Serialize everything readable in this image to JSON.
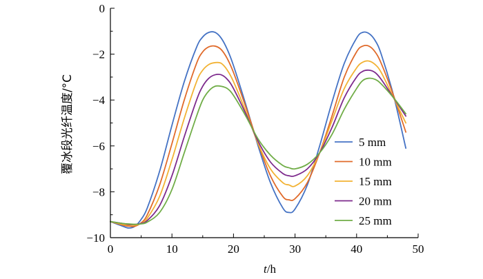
{
  "chart_data": {
    "type": "line",
    "xlabel_var": "t",
    "xlabel_unit": "/h",
    "ylabel": "覆冰段光纤温度/°C",
    "xlim": [
      0,
      50
    ],
    "ylim": [
      -10,
      0
    ],
    "xticks": [
      "0",
      "10",
      "20",
      "30",
      "40",
      "50"
    ],
    "yticks": [
      "0",
      "−2",
      "−4",
      "−6",
      "−8",
      "−10"
    ],
    "grid": false,
    "legend_position": "right",
    "x": [
      0,
      2,
      3,
      4,
      5,
      6,
      8,
      10,
      12,
      14,
      15,
      16,
      17,
      18,
      19,
      20,
      22,
      24,
      26,
      28,
      29,
      30,
      32,
      34,
      36,
      38,
      40,
      41,
      42,
      43,
      44,
      46,
      48
    ],
    "series": [
      {
        "name": "5 mm",
        "color": "#4472C4",
        "values": [
          -9.3,
          -9.5,
          -9.58,
          -9.5,
          -9.2,
          -8.7,
          -7.1,
          -5.1,
          -3.2,
          -1.7,
          -1.25,
          -1.05,
          -1.05,
          -1.3,
          -1.8,
          -2.5,
          -4.2,
          -6.0,
          -7.6,
          -8.7,
          -8.9,
          -8.75,
          -7.7,
          -6.0,
          -4.1,
          -2.4,
          -1.3,
          -1.05,
          -1.1,
          -1.4,
          -2.0,
          -3.8,
          -6.1
        ]
      },
      {
        "name": "10 mm",
        "color": "#E06A2A",
        "values": [
          -9.3,
          -9.45,
          -9.5,
          -9.5,
          -9.35,
          -9.0,
          -7.7,
          -5.9,
          -4.0,
          -2.4,
          -1.9,
          -1.68,
          -1.65,
          -1.8,
          -2.2,
          -2.8,
          -4.3,
          -5.9,
          -7.3,
          -8.2,
          -8.35,
          -8.3,
          -7.6,
          -6.3,
          -4.7,
          -3.0,
          -1.9,
          -1.65,
          -1.65,
          -1.9,
          -2.4,
          -3.8,
          -5.4
        ]
      },
      {
        "name": "15 mm",
        "color": "#F2B233",
        "values": [
          -9.3,
          -9.42,
          -9.45,
          -9.45,
          -9.38,
          -9.15,
          -8.2,
          -6.6,
          -4.8,
          -3.2,
          -2.7,
          -2.45,
          -2.37,
          -2.4,
          -2.7,
          -3.2,
          -4.5,
          -5.9,
          -7.0,
          -7.6,
          -7.7,
          -7.75,
          -7.3,
          -6.3,
          -4.9,
          -3.5,
          -2.6,
          -2.35,
          -2.3,
          -2.45,
          -2.8,
          -3.9,
          -5.0
        ]
      },
      {
        "name": "20 mm",
        "color": "#7D2A8C",
        "values": [
          -9.3,
          -9.38,
          -9.42,
          -9.42,
          -9.38,
          -9.25,
          -8.6,
          -7.3,
          -5.6,
          -4.0,
          -3.4,
          -3.05,
          -2.9,
          -2.9,
          -3.1,
          -3.5,
          -4.6,
          -5.8,
          -6.7,
          -7.2,
          -7.3,
          -7.3,
          -7.0,
          -6.3,
          -5.2,
          -3.9,
          -3.0,
          -2.75,
          -2.7,
          -2.8,
          -3.1,
          -3.9,
          -4.7
        ]
      },
      {
        "name": "25 mm",
        "color": "#70AD47",
        "values": [
          -9.3,
          -9.38,
          -9.4,
          -9.42,
          -9.4,
          -9.32,
          -8.9,
          -7.9,
          -6.3,
          -4.7,
          -4.0,
          -3.6,
          -3.4,
          -3.4,
          -3.5,
          -3.8,
          -4.7,
          -5.7,
          -6.4,
          -6.85,
          -6.95,
          -7.0,
          -6.8,
          -6.3,
          -5.5,
          -4.4,
          -3.5,
          -3.15,
          -3.05,
          -3.1,
          -3.3,
          -3.9,
          -4.6
        ]
      }
    ]
  }
}
